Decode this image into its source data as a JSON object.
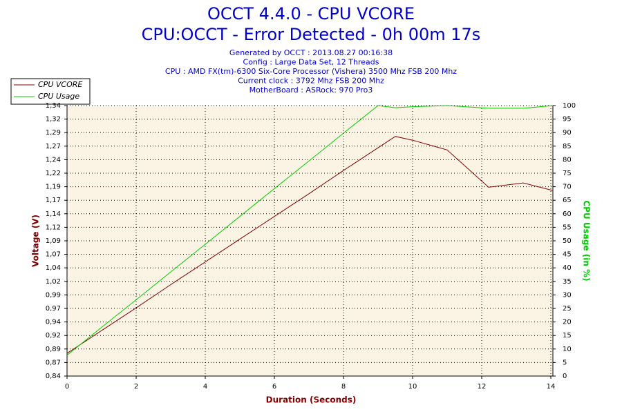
{
  "chart_data": {
    "type": "line",
    "title": "OCCT 4.4.0 - CPU VCORE",
    "subtitle": "CPU:OCCT - Error Detected - 0h 00m 17s",
    "info": [
      "Generated by OCCT : 2013.08.27 00:16:38",
      "Config : Large Data Set, 12 Threads",
      "CPU : AMD FX(tm)-6300 Six-Core Processor (Vishera) 3500 Mhz FSB 200 Mhz",
      "Current clock : 3792 Mhz FSB 200 Mhz",
      "MotherBoard : ASRock: 970 Pro3"
    ],
    "xlabel": "Duration (Seconds)",
    "ylabel": "Voltage (V)",
    "y2label": "CPU Usage (in %)",
    "x": [
      0,
      1,
      2,
      3,
      4,
      5,
      6,
      7,
      8,
      9,
      9.5,
      10,
      11,
      12.2,
      13.2,
      14.06
    ],
    "xlim": [
      0,
      14.06
    ],
    "xticks": [
      0,
      2,
      4,
      6,
      8,
      10,
      12,
      14
    ],
    "ylim": [
      0.84,
      1.34
    ],
    "yticks": [
      {
        "value": 0.84,
        "label": "0,84"
      },
      {
        "value": 0.865,
        "label": "0,87"
      },
      {
        "value": 0.89,
        "label": "0,89"
      },
      {
        "value": 0.915,
        "label": "0,92"
      },
      {
        "value": 0.94,
        "label": "0,94"
      },
      {
        "value": 0.965,
        "label": "0,97"
      },
      {
        "value": 0.99,
        "label": "0,99"
      },
      {
        "value": 1.015,
        "label": "1,02"
      },
      {
        "value": 1.04,
        "label": "1,04"
      },
      {
        "value": 1.065,
        "label": "1,07"
      },
      {
        "value": 1.09,
        "label": "1,09"
      },
      {
        "value": 1.115,
        "label": "1,12"
      },
      {
        "value": 1.14,
        "label": "1,14"
      },
      {
        "value": 1.165,
        "label": "1,17"
      },
      {
        "value": 1.19,
        "label": "1,19"
      },
      {
        "value": 1.215,
        "label": "1,22"
      },
      {
        "value": 1.24,
        "label": "1,24"
      },
      {
        "value": 1.265,
        "label": "1,27"
      },
      {
        "value": 1.29,
        "label": "1,29"
      },
      {
        "value": 1.315,
        "label": "1,32"
      },
      {
        "value": 1.34,
        "label": "1,34"
      }
    ],
    "y2lim": [
      0,
      100
    ],
    "y2ticks": [
      0,
      5,
      10,
      15,
      20,
      25,
      30,
      35,
      40,
      45,
      50,
      55,
      60,
      65,
      70,
      75,
      80,
      85,
      90,
      95,
      100
    ],
    "grid": true,
    "legend": "top-left",
    "series": [
      {
        "name": "CPU VCORE",
        "color": "#800000",
        "values": [
          0.882,
          0.924,
          0.966,
          1.009,
          1.051,
          1.093,
          1.135,
          1.177,
          1.22,
          1.262,
          1.283,
          1.276,
          1.258,
          1.189,
          1.197,
          1.183
        ]
      },
      {
        "name": "CPU Usage",
        "color": "#00cc00",
        "axis": "y2",
        "values": [
          7.7,
          18,
          28.2,
          38.5,
          48.7,
          59,
          69.3,
          79.5,
          89.8,
          100,
          99.2,
          99.6,
          100,
          99,
          99,
          100
        ]
      }
    ]
  }
}
